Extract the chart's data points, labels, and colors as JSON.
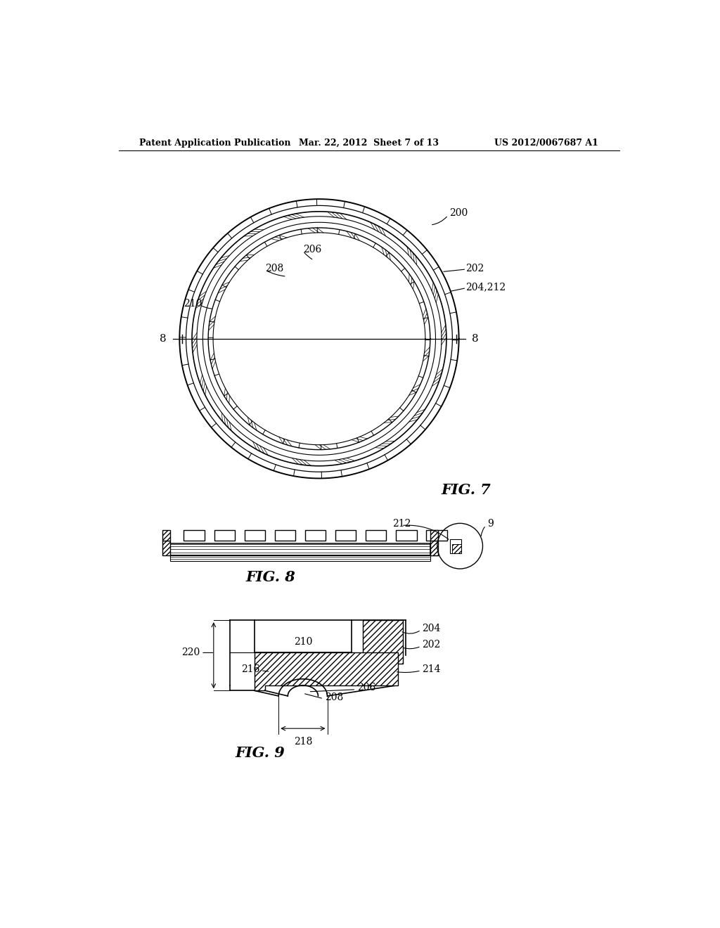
{
  "bg_color": "#ffffff",
  "header_left": "Patent Application Publication",
  "header_center": "Mar. 22, 2012  Sheet 7 of 13",
  "header_right": "US 2012/0067687 A1",
  "fig7_label": "FIG. 7",
  "fig8_label": "FIG. 8",
  "fig9_label": "FIG. 9",
  "ref_200": "200",
  "ref_202": "202",
  "ref_204": "204",
  "ref_204_212": "204,212",
  "ref_206": "206",
  "ref_208": "208",
  "ref_210": "210",
  "ref_212": "212",
  "ref_214": "214",
  "ref_216": "216",
  "ref_218": "218",
  "ref_220": "220",
  "ref_9": "9",
  "ref_8_left": "8",
  "ref_8_right": "8"
}
